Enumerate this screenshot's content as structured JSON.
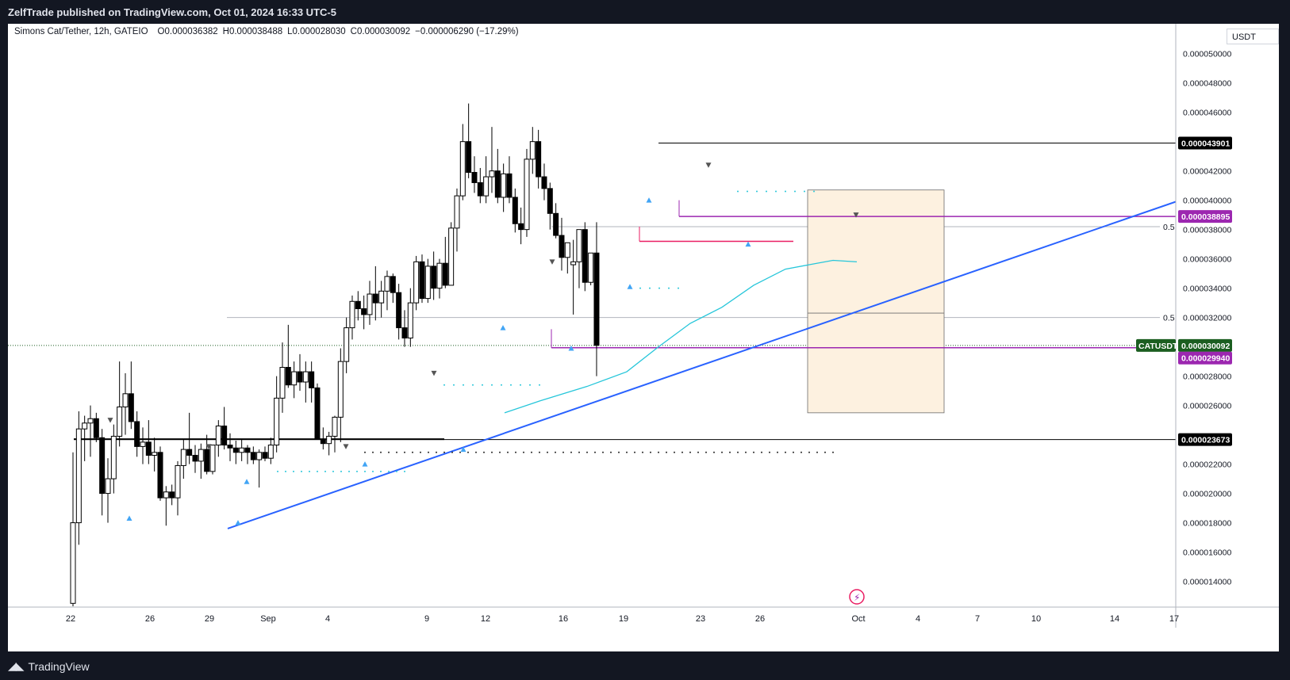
{
  "header": {
    "publisher_line": "ZelfTrade published on TradingView.com, Oct 01, 2024 16:33 UTC-5"
  },
  "footer": {
    "brand": "TradingView",
    "logo_icon": "tradingview-logo-icon"
  },
  "legend": {
    "symbol": "Simons Cat/Tether, 12h, GATEIO",
    "o_label": "O",
    "o": "0.000036382",
    "h_label": "H",
    "h": "0.000038488",
    "l_label": "L",
    "l": "0.000028030",
    "c_label": "C",
    "c": "0.000030092",
    "change": "−0.000006290 (−17.29%)"
  },
  "currency": "USDT",
  "colors": {
    "up_body": "#ffffff",
    "down_body": "#000000",
    "candle_border": "#000000",
    "trendline": "#2962ff",
    "ema": "#26c6da",
    "pink": "#e91e63",
    "purple_tag": "#9c27b0",
    "green_tag": "#1b5e20",
    "box_fill": "#fdf1e0",
    "box_stroke": "#6b6b6b",
    "up_marker": "#42a5f5",
    "down_marker": "#555555"
  },
  "chart_data": {
    "type": "candlestick",
    "interval": "12h",
    "ylim": [
      1.23e-05,
      5.22e-05
    ],
    "y_ticks": [
      "0.000050000",
      "0.000048000",
      "0.000046000",
      "0.000044000",
      "0.000042000",
      "0.000040000",
      "0.000038000",
      "0.000036000",
      "0.000034000",
      "0.000032000",
      "0.000028000",
      "0.000026000",
      "0.000022000",
      "0.000020000",
      "0.000018000",
      "0.000016000",
      "0.000014000"
    ],
    "x_ticks": [
      "22",
      "26",
      "29",
      "Sep",
      "4",
      "9",
      "12",
      "16",
      "19",
      "23",
      "26",
      "Oct",
      "4",
      "7",
      "10",
      "14",
      "17"
    ],
    "candles": [
      {
        "o": 1.25e-05,
        "h": 2.28e-05,
        "l": 1.23e-05,
        "c": 1.8e-05
      },
      {
        "o": 1.8e-05,
        "h": 2.56e-05,
        "l": 1.65e-05,
        "c": 2.44e-05
      },
      {
        "o": 2.44e-05,
        "h": 2.53e-05,
        "l": 2.22e-05,
        "c": 2.48e-05
      },
      {
        "o": 2.48e-05,
        "h": 2.6e-05,
        "l": 2.25e-05,
        "c": 2.51e-05
      },
      {
        "o": 2.51e-05,
        "h": 2.55e-05,
        "l": 2.35e-05,
        "c": 2.38e-05
      },
      {
        "o": 2.38e-05,
        "h": 2.44e-05,
        "l": 1.85e-05,
        "c": 2e-05
      },
      {
        "o": 2e-05,
        "h": 2.24e-05,
        "l": 1.8e-05,
        "c": 2.1e-05
      },
      {
        "o": 2.1e-05,
        "h": 2.47e-05,
        "l": 2e-05,
        "c": 2.39e-05
      },
      {
        "o": 2.39e-05,
        "h": 2.9e-05,
        "l": 2.32e-05,
        "c": 2.59e-05
      },
      {
        "o": 2.59e-05,
        "h": 2.82e-05,
        "l": 2.4e-05,
        "c": 2.68e-05
      },
      {
        "o": 2.68e-05,
        "h": 2.9e-05,
        "l": 2.44e-05,
        "c": 2.49e-05
      },
      {
        "o": 2.49e-05,
        "h": 2.56e-05,
        "l": 2.25e-05,
        "c": 2.32e-05
      },
      {
        "o": 2.32e-05,
        "h": 2.45e-05,
        "l": 2.2e-05,
        "c": 2.35e-05
      },
      {
        "o": 2.35e-05,
        "h": 2.5e-05,
        "l": 2.2e-05,
        "c": 2.26e-05
      },
      {
        "o": 2.26e-05,
        "h": 2.38e-05,
        "l": 2.15e-05,
        "c": 2.28e-05
      },
      {
        "o": 2.28e-05,
        "h": 2.32e-05,
        "l": 1.95e-05,
        "c": 1.97e-05
      },
      {
        "o": 1.97e-05,
        "h": 2.05e-05,
        "l": 1.78e-05,
        "c": 2.01e-05
      },
      {
        "o": 2.01e-05,
        "h": 2.06e-05,
        "l": 1.92e-05,
        "c": 1.97e-05
      },
      {
        "o": 1.97e-05,
        "h": 2.22e-05,
        "l": 1.85e-05,
        "c": 2.19e-05
      },
      {
        "o": 2.19e-05,
        "h": 2.37e-05,
        "l": 2.1e-05,
        "c": 2.3e-05
      },
      {
        "o": 2.3e-05,
        "h": 2.55e-05,
        "l": 2.2e-05,
        "c": 2.26e-05
      },
      {
        "o": 2.26e-05,
        "h": 2.33e-05,
        "l": 2.14e-05,
        "c": 2.22e-05
      },
      {
        "o": 2.22e-05,
        "h": 2.34e-05,
        "l": 2.1e-05,
        "c": 2.3e-05
      },
      {
        "o": 2.3e-05,
        "h": 2.4e-05,
        "l": 2.13e-05,
        "c": 2.15e-05
      },
      {
        "o": 2.15e-05,
        "h": 2.33e-05,
        "l": 2.13e-05,
        "c": 2.33e-05
      },
      {
        "o": 2.33e-05,
        "h": 2.5e-05,
        "l": 2.25e-05,
        "c": 2.46e-05
      },
      {
        "o": 2.46e-05,
        "h": 2.59e-05,
        "l": 2.3e-05,
        "c": 2.33e-05
      },
      {
        "o": 2.33e-05,
        "h": 2.41e-05,
        "l": 2.22e-05,
        "c": 2.31e-05
      },
      {
        "o": 2.31e-05,
        "h": 2.36e-05,
        "l": 2.2e-05,
        "c": 2.28e-05
      },
      {
        "o": 2.28e-05,
        "h": 2.37e-05,
        "l": 2.22e-05,
        "c": 2.31e-05
      },
      {
        "o": 2.31e-05,
        "h": 2.33e-05,
        "l": 2.2e-05,
        "c": 2.28e-05
      },
      {
        "o": 2.28e-05,
        "h": 2.32e-05,
        "l": 2.2e-05,
        "c": 2.23e-05
      },
      {
        "o": 2.23e-05,
        "h": 2.3e-05,
        "l": 2.04e-05,
        "c": 2.28e-05
      },
      {
        "o": 2.28e-05,
        "h": 2.32e-05,
        "l": 2.22e-05,
        "c": 2.24e-05
      },
      {
        "o": 2.24e-05,
        "h": 2.38e-05,
        "l": 2.2e-05,
        "c": 2.33e-05
      },
      {
        "o": 2.33e-05,
        "h": 2.8e-05,
        "l": 2.28e-05,
        "c": 2.65e-05
      },
      {
        "o": 2.65e-05,
        "h": 3.03e-05,
        "l": 2.55e-05,
        "c": 2.86e-05
      },
      {
        "o": 2.86e-05,
        "h": 3.15e-05,
        "l": 2.72e-05,
        "c": 2.74e-05
      },
      {
        "o": 2.74e-05,
        "h": 2.9e-05,
        "l": 2.65e-05,
        "c": 2.83e-05
      },
      {
        "o": 2.83e-05,
        "h": 2.95e-05,
        "l": 2.7e-05,
        "c": 2.76e-05
      },
      {
        "o": 2.76e-05,
        "h": 2.9e-05,
        "l": 2.62e-05,
        "c": 2.83e-05
      },
      {
        "o": 2.83e-05,
        "h": 2.9e-05,
        "l": 2.62e-05,
        "c": 2.72e-05
      },
      {
        "o": 2.72e-05,
        "h": 2.75e-05,
        "l": 2.38e-05,
        "c": 2.37e-05
      },
      {
        "o": 2.37e-05,
        "h": 2.45e-05,
        "l": 2.3e-05,
        "c": 2.34e-05
      },
      {
        "o": 2.34e-05,
        "h": 2.42e-05,
        "l": 2.26e-05,
        "c": 2.39e-05
      },
      {
        "o": 2.39e-05,
        "h": 2.53e-05,
        "l": 2.28e-05,
        "c": 2.52e-05
      },
      {
        "o": 2.52e-05,
        "h": 2.99e-05,
        "l": 2.35e-05,
        "c": 2.9e-05
      },
      {
        "o": 2.9e-05,
        "h": 3.2e-05,
        "l": 2.82e-05,
        "c": 3.13e-05
      },
      {
        "o": 3.13e-05,
        "h": 3.35e-05,
        "l": 3.05e-05,
        "c": 3.31e-05
      },
      {
        "o": 3.31e-05,
        "h": 3.38e-05,
        "l": 3.18e-05,
        "c": 3.26e-05
      },
      {
        "o": 3.26e-05,
        "h": 3.35e-05,
        "l": 3.12e-05,
        "c": 3.22e-05
      },
      {
        "o": 3.22e-05,
        "h": 3.45e-05,
        "l": 3.15e-05,
        "c": 3.36e-05
      },
      {
        "o": 3.36e-05,
        "h": 3.55e-05,
        "l": 3.18e-05,
        "c": 3.3e-05
      },
      {
        "o": 3.3e-05,
        "h": 3.45e-05,
        "l": 3.2e-05,
        "c": 3.38e-05
      },
      {
        "o": 3.38e-05,
        "h": 3.52e-05,
        "l": 3.25e-05,
        "c": 3.48e-05
      },
      {
        "o": 3.48e-05,
        "h": 3.5e-05,
        "l": 3.3e-05,
        "c": 3.37e-05
      },
      {
        "o": 3.37e-05,
        "h": 3.43e-05,
        "l": 3.05e-05,
        "c": 3.13e-05
      },
      {
        "o": 3.13e-05,
        "h": 3.25e-05,
        "l": 3e-05,
        "c": 3.06e-05
      },
      {
        "o": 3.06e-05,
        "h": 3.4e-05,
        "l": 3e-05,
        "c": 3.3e-05
      },
      {
        "o": 3.3e-05,
        "h": 3.62e-05,
        "l": 3.25e-05,
        "c": 3.58e-05
      },
      {
        "o": 3.58e-05,
        "h": 3.63e-05,
        "l": 3.3e-05,
        "c": 3.33e-05
      },
      {
        "o": 3.33e-05,
        "h": 3.6e-05,
        "l": 3.3e-05,
        "c": 3.55e-05
      },
      {
        "o": 3.55e-05,
        "h": 3.65e-05,
        "l": 3.32e-05,
        "c": 3.4e-05
      },
      {
        "o": 3.4e-05,
        "h": 3.6e-05,
        "l": 3.33e-05,
        "c": 3.57e-05
      },
      {
        "o": 3.57e-05,
        "h": 3.75e-05,
        "l": 3.4e-05,
        "c": 3.42e-05
      },
      {
        "o": 3.42e-05,
        "h": 3.85e-05,
        "l": 3.42e-05,
        "c": 3.81e-05
      },
      {
        "o": 3.81e-05,
        "h": 4.08e-05,
        "l": 3.65e-05,
        "c": 4.03e-05
      },
      {
        "o": 4.03e-05,
        "h": 4.52e-05,
        "l": 4e-05,
        "c": 4.4e-05
      },
      {
        "o": 4.4e-05,
        "h": 4.66e-05,
        "l": 4.15e-05,
        "c": 4.19e-05
      },
      {
        "o": 4.19e-05,
        "h": 4.3e-05,
        "l": 4.05e-05,
        "c": 4.12e-05
      },
      {
        "o": 4.12e-05,
        "h": 4.22e-05,
        "l": 3.98e-05,
        "c": 4.03e-05
      },
      {
        "o": 4.03e-05,
        "h": 4.3e-05,
        "l": 3.98e-05,
        "c": 4.16e-05
      },
      {
        "o": 4.16e-05,
        "h": 4.5e-05,
        "l": 4.05e-05,
        "c": 4.2e-05
      },
      {
        "o": 4.2e-05,
        "h": 4.35e-05,
        "l": 3.98e-05,
        "c": 4.02e-05
      },
      {
        "o": 4.02e-05,
        "h": 4.25e-05,
        "l": 3.92e-05,
        "c": 4.18e-05
      },
      {
        "o": 4.18e-05,
        "h": 4.3e-05,
        "l": 3.98e-05,
        "c": 4.02e-05
      },
      {
        "o": 4.02e-05,
        "h": 4.08e-05,
        "l": 3.78e-05,
        "c": 3.84e-05
      },
      {
        "o": 3.84e-05,
        "h": 3.95e-05,
        "l": 3.7e-05,
        "c": 3.8e-05
      },
      {
        "o": 3.8e-05,
        "h": 4.35e-05,
        "l": 3.75e-05,
        "c": 4.28e-05
      },
      {
        "o": 4.28e-05,
        "h": 4.5e-05,
        "l": 4.18e-05,
        "c": 4.4e-05
      },
      {
        "o": 4.4e-05,
        "h": 4.48e-05,
        "l": 4.08e-05,
        "c": 4.16e-05
      },
      {
        "o": 4.16e-05,
        "h": 4.25e-05,
        "l": 4e-05,
        "c": 4.08e-05
      },
      {
        "o": 4.08e-05,
        "h": 4.12e-05,
        "l": 3.8e-05,
        "c": 3.91e-05
      },
      {
        "o": 3.91e-05,
        "h": 3.98e-05,
        "l": 3.74e-05,
        "c": 3.76e-05
      },
      {
        "o": 3.76e-05,
        "h": 3.88e-05,
        "l": 3.52e-05,
        "c": 3.61e-05
      },
      {
        "o": 3.61e-05,
        "h": 3.7e-05,
        "l": 3.5e-05,
        "c": 3.71e-05
      },
      {
        "o": 3.56e-05,
        "h": 3.73e-05,
        "l": 3.22e-05,
        "c": 3.58e-05
      },
      {
        "o": 3.58e-05,
        "h": 3.8e-05,
        "l": 3.4e-05,
        "c": 3.8e-05
      },
      {
        "o": 3.8e-05,
        "h": 3.85e-05,
        "l": 3.38e-05,
        "c": 3.44e-05
      },
      {
        "o": 3.44e-05,
        "h": 3.62e-05,
        "l": 3.42e-05,
        "c": 3.64e-05
      },
      {
        "o": 3.64e-05,
        "h": 3.85e-05,
        "l": 2.8e-05,
        "c": 3.01e-05
      }
    ],
    "ema": [
      2.43e-05,
      2.46e-05,
      2.51e-05,
      2.57e-05,
      2.63e-05,
      2.7e-05,
      2.78e-05,
      2.86e-05,
      2.94e-05,
      3.03e-05,
      3.13e-05,
      3.22e-05,
      3.3e-05,
      3.38e-05,
      3.45e-05,
      3.5e-05,
      3.54e-05,
      3.57e-05,
      3.59e-05,
      3.58e-05
    ],
    "levels": [
      {
        "label": "0.000043901",
        "value": 4.3901e-05,
        "tag": "black"
      },
      {
        "label": "0.000038895",
        "value": 3.8895e-05,
        "tag": "purple"
      },
      {
        "label": "0.000030092",
        "value": 3.0092e-05,
        "tag": "green",
        "ticker": "CATUSDT"
      },
      {
        "label": "0.000029940",
        "value": 2.994e-05,
        "tag": "purple"
      },
      {
        "label": "0.000023673",
        "value": 2.3673e-05,
        "tag": "black"
      }
    ],
    "fib_label": "0.5"
  }
}
